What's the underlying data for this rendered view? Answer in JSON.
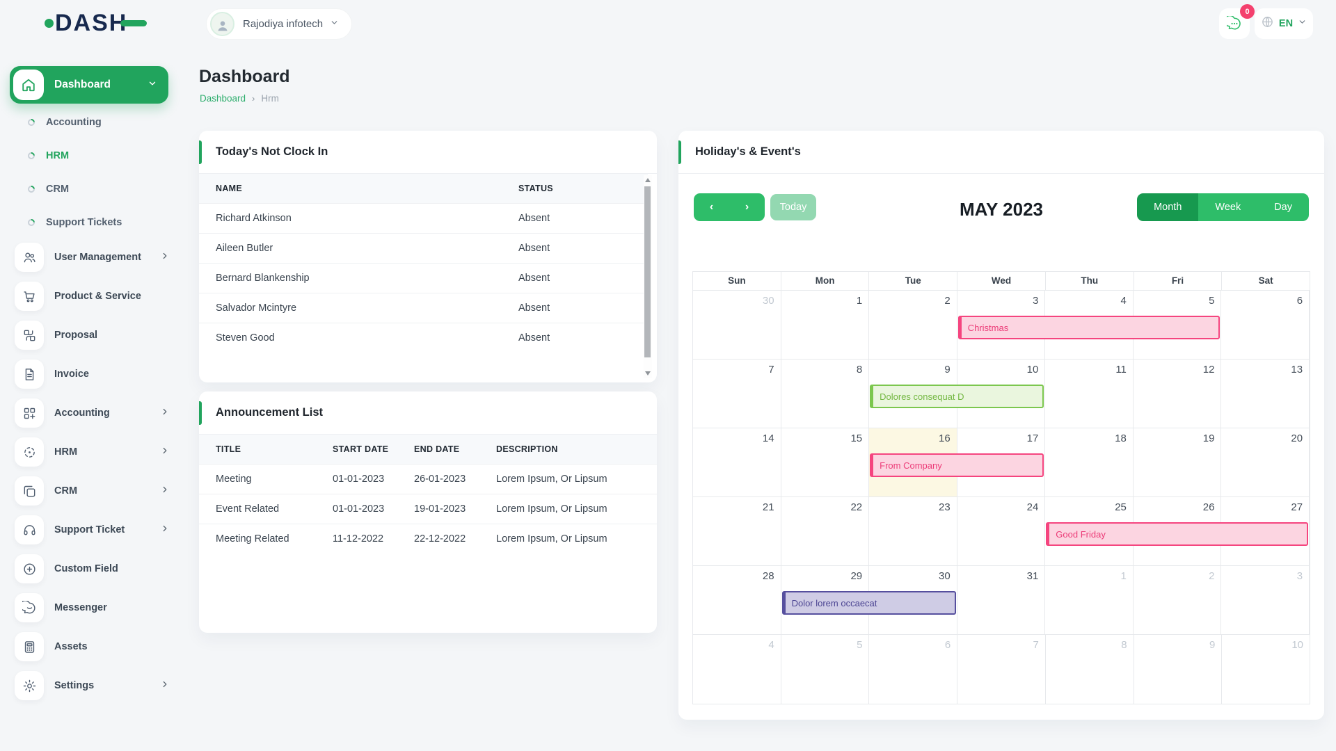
{
  "brand": {
    "logo_text": "DASH"
  },
  "topbar": {
    "company_name": "Rajodiya infotech",
    "notification_count": "0",
    "language": "EN"
  },
  "page": {
    "title": "Dashboard",
    "breadcrumb_home": "Dashboard",
    "breadcrumb_sep": "›",
    "breadcrumb_current": "Hrm"
  },
  "sidebar": {
    "dashboard_label": "Dashboard",
    "sub_items": [
      {
        "label": "Accounting",
        "active": false
      },
      {
        "label": "HRM",
        "active": true
      },
      {
        "label": "CRM",
        "active": false
      },
      {
        "label": "Support Tickets",
        "active": false
      }
    ],
    "items": [
      {
        "label": "User Management",
        "icon": "users-icon",
        "chevron": true
      },
      {
        "label": "Product & Service",
        "icon": "cart-icon",
        "chevron": false
      },
      {
        "label": "Proposal",
        "icon": "proposal-icon",
        "chevron": false
      },
      {
        "label": "Invoice",
        "icon": "invoice-icon",
        "chevron": false
      },
      {
        "label": "Accounting",
        "icon": "accounting-icon",
        "chevron": true
      },
      {
        "label": "HRM",
        "icon": "hrm-icon",
        "chevron": true
      },
      {
        "label": "CRM",
        "icon": "crm-icon",
        "chevron": true
      },
      {
        "label": "Support Ticket",
        "icon": "headset-icon",
        "chevron": true
      },
      {
        "label": "Custom Field",
        "icon": "plus-circle-icon",
        "chevron": false
      },
      {
        "label": "Messenger",
        "icon": "chat-icon",
        "chevron": false
      },
      {
        "label": "Assets",
        "icon": "calculator-icon",
        "chevron": false
      },
      {
        "label": "Settings",
        "icon": "gear-icon",
        "chevron": true
      }
    ]
  },
  "not_clock_in": {
    "title": "Today's Not Clock In",
    "columns": [
      "NAME",
      "STATUS"
    ],
    "rows": [
      {
        "name": "Richard Atkinson",
        "status": "Absent"
      },
      {
        "name": "Aileen Butler",
        "status": "Absent"
      },
      {
        "name": "Bernard Blankenship",
        "status": "Absent"
      },
      {
        "name": "Salvador Mcintyre",
        "status": "Absent"
      },
      {
        "name": "Steven Good",
        "status": "Absent"
      }
    ]
  },
  "announcements": {
    "title": "Announcement List",
    "columns": [
      "TITLE",
      "START DATE",
      "END DATE",
      "DESCRIPTION"
    ],
    "rows": [
      {
        "title": "Meeting",
        "start": "01-01-2023",
        "end": "26-01-2023",
        "description": "Lorem Ipsum, Or Lipsum"
      },
      {
        "title": "Event Related",
        "start": "01-01-2023",
        "end": "19-01-2023",
        "description": "Lorem Ipsum, Or Lipsum"
      },
      {
        "title": "Meeting Related",
        "start": "11-12-2022",
        "end": "22-12-2022",
        "description": "Lorem Ipsum, Or Lipsum"
      }
    ]
  },
  "calendar": {
    "card_title": "Holiday's & Event's",
    "month_title": "MAY 2023",
    "today_label": "Today",
    "views": [
      "Month",
      "Week",
      "Day"
    ],
    "active_view": "Month",
    "day_headers": [
      "Sun",
      "Mon",
      "Tue",
      "Wed",
      "Thu",
      "Fri",
      "Sat"
    ],
    "weeks": [
      [
        {
          "d": "30",
          "m": true
        },
        {
          "d": "1",
          "m": false
        },
        {
          "d": "2",
          "m": false
        },
        {
          "d": "3",
          "m": false
        },
        {
          "d": "4",
          "m": false
        },
        {
          "d": "5",
          "m": false
        },
        {
          "d": "6",
          "m": false
        }
      ],
      [
        {
          "d": "7",
          "m": false
        },
        {
          "d": "8",
          "m": false
        },
        {
          "d": "9",
          "m": false
        },
        {
          "d": "10",
          "m": false
        },
        {
          "d": "11",
          "m": false
        },
        {
          "d": "12",
          "m": false
        },
        {
          "d": "13",
          "m": false
        }
      ],
      [
        {
          "d": "14",
          "m": false
        },
        {
          "d": "15",
          "m": false
        },
        {
          "d": "16",
          "m": false
        },
        {
          "d": "17",
          "m": false
        },
        {
          "d": "18",
          "m": false
        },
        {
          "d": "19",
          "m": false
        },
        {
          "d": "20",
          "m": false
        }
      ],
      [
        {
          "d": "21",
          "m": false
        },
        {
          "d": "22",
          "m": false
        },
        {
          "d": "23",
          "m": false
        },
        {
          "d": "24",
          "m": false
        },
        {
          "d": "25",
          "m": false
        },
        {
          "d": "26",
          "m": false
        },
        {
          "d": "27",
          "m": false
        }
      ],
      [
        {
          "d": "28",
          "m": false
        },
        {
          "d": "29",
          "m": false
        },
        {
          "d": "30",
          "m": false
        },
        {
          "d": "31",
          "m": false
        },
        {
          "d": "1",
          "m": true
        },
        {
          "d": "2",
          "m": true
        },
        {
          "d": "3",
          "m": true
        }
      ],
      [
        {
          "d": "4",
          "m": true
        },
        {
          "d": "5",
          "m": true
        },
        {
          "d": "6",
          "m": true
        },
        {
          "d": "7",
          "m": true
        },
        {
          "d": "8",
          "m": true
        },
        {
          "d": "9",
          "m": true
        },
        {
          "d": "10",
          "m": true
        }
      ]
    ],
    "today_cell": {
      "week": 2,
      "col": 2
    },
    "events": [
      {
        "title": "Christmas",
        "week": 0,
        "col": 3,
        "span": 3,
        "color": "pink"
      },
      {
        "title": "Dolores consequat D",
        "week": 1,
        "col": 2,
        "span": 2,
        "color": "green"
      },
      {
        "title": "From Company",
        "week": 2,
        "col": 2,
        "span": 2,
        "color": "pink"
      },
      {
        "title": "Good Friday",
        "week": 3,
        "col": 4,
        "span": 3,
        "color": "pink"
      },
      {
        "title": "Dolor lorem occaecat",
        "week": 4,
        "col": 1,
        "span": 2,
        "color": "purple"
      }
    ],
    "colors": {
      "pink": "#f5457f",
      "green": "#7cc74e",
      "purple": "#564f9e",
      "today_bg": "#fcf8e3",
      "accent": "#21a45d"
    }
  }
}
